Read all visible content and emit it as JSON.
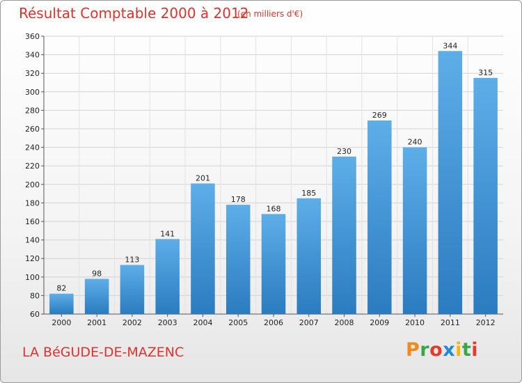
{
  "title": "Résultat Comptable 2000 à 2012",
  "subtitle": "(en milliers d'€)",
  "commune": "LA BéGUDE-DE-MAZENC",
  "logo": {
    "letters": [
      "P",
      "r",
      "o",
      "x",
      "i",
      "t",
      "i"
    ],
    "colors": [
      "#f08a1c",
      "#3aa64a",
      "#e53b2c",
      "#1f8ad9",
      "#f6b800",
      "#3aa64a",
      "#e53b2c"
    ]
  },
  "colors": {
    "title": "#e0312b",
    "bar_top": "#5daee8",
    "bar_bottom": "#2b7bc0"
  },
  "chart_data": {
    "type": "bar",
    "categories": [
      "2000",
      "2001",
      "2002",
      "2003",
      "2004",
      "2005",
      "2006",
      "2007",
      "2008",
      "2009",
      "2010",
      "2011",
      "2012"
    ],
    "values": [
      82,
      98,
      113,
      141,
      201,
      178,
      168,
      185,
      230,
      269,
      240,
      344,
      315
    ],
    "ylim": [
      60,
      360
    ],
    "yticks": [
      60,
      80,
      100,
      120,
      140,
      160,
      180,
      200,
      220,
      240,
      260,
      280,
      300,
      320,
      340,
      360
    ],
    "grid": true
  }
}
